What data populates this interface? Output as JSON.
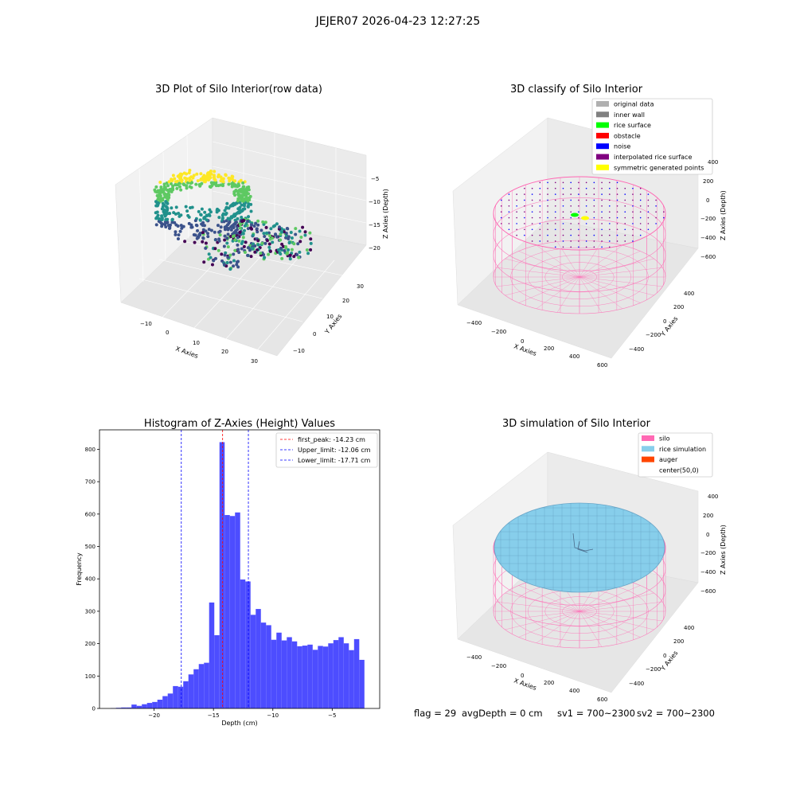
{
  "figure": {
    "suptitle": "JEJER07 2026-04-23 12:27:25"
  },
  "panels": {
    "raw": {
      "title": "3D Plot of Silo Interior(row data)",
      "xlabel": "X Axies",
      "ylabel": "Y Axies",
      "zlabel": "Z Axies (Depth)",
      "xticks": [
        "−10",
        "0",
        "10",
        "20",
        "30"
      ],
      "yticks": [
        "−10",
        "0",
        "10",
        "20",
        "30"
      ],
      "zticks": [
        "−5",
        "−10",
        "−15",
        "−20"
      ],
      "colormap": [
        "#fde725",
        "#5ec962",
        "#21918c",
        "#3b528b",
        "#440154"
      ]
    },
    "classify": {
      "title": "3D classify of Silo Interior",
      "xlabel": "X Axies",
      "ylabel": "Y Axies",
      "zlabel": "Z Axies (Depth)",
      "xticks": [
        "−400",
        "−200",
        "0",
        "200",
        "400",
        "600"
      ],
      "yticks": [
        "−400",
        "−200",
        "0",
        "200",
        "400"
      ],
      "zticks": [
        "400",
        "200",
        "0",
        "−200",
        "−400",
        "−600"
      ],
      "legend": [
        {
          "label": "original data",
          "color": "#b0b0b0"
        },
        {
          "label": "inner wall",
          "color": "#808080"
        },
        {
          "label": "rice surface",
          "color": "#00ff00"
        },
        {
          "label": "obstacle",
          "color": "#ff0000"
        },
        {
          "label": "noise",
          "color": "#0000ff"
        },
        {
          "label": "interpolated rice surface",
          "color": "#800080"
        },
        {
          "label": "symmetric generated points",
          "color": "#ffff00"
        }
      ],
      "wire_color": "#ff69b4"
    },
    "histogram": {
      "title": "Histogram of Z-Axies (Height) Values",
      "xlabel": "Depth (cm)",
      "ylabel": "Frequency",
      "legend": [
        {
          "label": "first_peak: -14.23 cm",
          "color": "#ff0000"
        },
        {
          "label": "Upper_limit: -12.06 cm",
          "color": "#0000ff"
        },
        {
          "label": "Lower_limit: -17.71 cm",
          "color": "#0000ff"
        }
      ],
      "bar_color": "#4d4dff"
    },
    "simulation": {
      "title": "3D simulation of Silo Interior",
      "xlabel": "X Axies",
      "ylabel": "Y Axies",
      "zlabel": "Z Axies (Depth)",
      "xticks": [
        "−400",
        "−200",
        "0",
        "200",
        "400",
        "600"
      ],
      "yticks": [
        "−400",
        "−200",
        "0",
        "200",
        "400"
      ],
      "zticks": [
        "400",
        "200",
        "0",
        "−200",
        "−400",
        "−600"
      ],
      "legend": [
        {
          "label": "silo",
          "color": "#ff69b4"
        },
        {
          "label": "rice simulation",
          "color": "#87ceeb"
        },
        {
          "label": "auger",
          "color": "#ff4500"
        },
        {
          "label": "center(50,0)",
          "color": ""
        }
      ]
    }
  },
  "status": {
    "flag": "flag = 29",
    "avg_depth": "avgDepth = 0 cm",
    "sv1": "sv1 = 700~2300",
    "sv2": "sv2 = 700~2300"
  },
  "chart_data": {
    "type": "bar",
    "xlim": [
      -24.6,
      -1
    ],
    "ylim": [
      0,
      860
    ],
    "xticks": [
      -20,
      -15,
      -10,
      -5
    ],
    "yticks": [
      0,
      100,
      200,
      300,
      400,
      500,
      600,
      700,
      800
    ],
    "bin_start": -23.65,
    "bin_width": 0.436,
    "values": [
      1,
      2,
      3,
      3,
      12,
      8,
      13,
      17,
      20,
      27,
      38,
      46,
      69,
      67,
      84,
      105,
      121,
      137,
      141,
      327,
      226,
      822,
      597,
      594,
      605,
      398,
      392,
      289,
      307,
      265,
      257,
      212,
      234,
      210,
      220,
      207,
      192,
      194,
      197,
      181,
      193,
      191,
      201,
      211,
      220,
      201,
      180,
      214,
      150
    ],
    "vlines": [
      {
        "name": "first_peak: -14.23 cm",
        "x": -14.23,
        "color": "#ff0000"
      },
      {
        "name": "Upper_limit: -12.06 cm",
        "x": -12.06,
        "color": "#0000ff"
      },
      {
        "name": "Lower_limit: -17.71 cm",
        "x": -17.71,
        "color": "#0000ff"
      }
    ]
  }
}
